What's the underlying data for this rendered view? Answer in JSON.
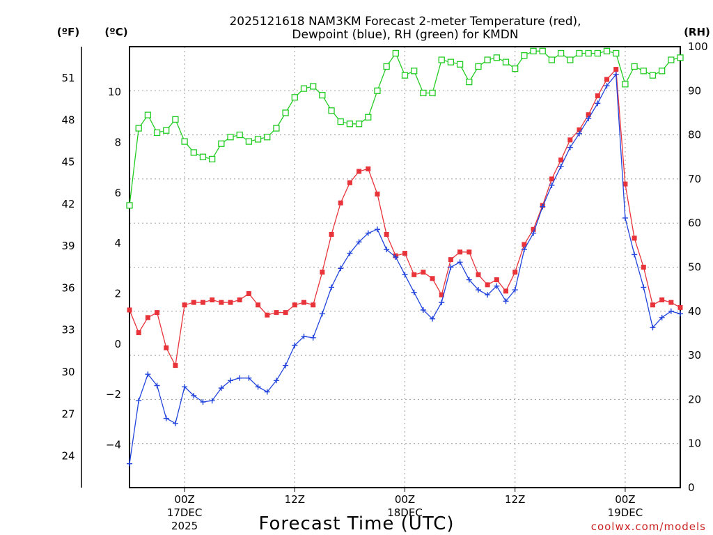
{
  "colors": {
    "temperature": "#e8333a",
    "dewpoint": "#2244dd",
    "rh": "#22cc22",
    "credit": "#cc2222"
  },
  "chart_data": {
    "type": "line",
    "title_line1": "2025121618 NAM3KM Forecast 2-meter Temperature (red),",
    "title_line2": "Dewpoint (blue), RH (green) for KMDN",
    "xlabel": "Forecast Time (UTC)",
    "credit": "coolwx.com/models",
    "axis_units": {
      "f": "(ºF)",
      "c": "(ºC)",
      "rh": "(RH)"
    },
    "x_unit": "forecast hour since 2025-12-16 18Z",
    "xlim": [
      0,
      60
    ],
    "x_ticks": [
      {
        "x": 6,
        "label": "00Z",
        "sub1": "17DEC",
        "sub2": "2025"
      },
      {
        "x": 18,
        "label": "12Z",
        "sub1": "",
        "sub2": ""
      },
      {
        "x": 30,
        "label": "00Z",
        "sub1": "18DEC",
        "sub2": ""
      },
      {
        "x": 42,
        "label": "12Z",
        "sub1": "",
        "sub2": ""
      },
      {
        "x": 54,
        "label": "00Z",
        "sub1": "19DEC",
        "sub2": ""
      }
    ],
    "ylim_c": [
      -5.7,
      11.8
    ],
    "yticks_c": [
      -4,
      -2,
      0,
      2,
      4,
      6,
      8,
      10
    ],
    "yticks_f": [
      24,
      27,
      30,
      33,
      36,
      39,
      42,
      45,
      48,
      51
    ],
    "ylim_rh": [
      0,
      100
    ],
    "yticks_rh": [
      0,
      10,
      20,
      30,
      40,
      50,
      60,
      70,
      80,
      90,
      100
    ],
    "x": [
      0,
      1,
      2,
      3,
      4,
      5,
      6,
      7,
      8,
      9,
      10,
      11,
      12,
      13,
      14,
      15,
      16,
      17,
      18,
      19,
      20,
      21,
      22,
      23,
      24,
      25,
      26,
      27,
      28,
      29,
      30,
      31,
      32,
      33,
      34,
      35,
      36,
      37,
      38,
      39,
      40,
      41,
      42,
      43,
      44,
      45,
      46,
      47,
      48,
      49,
      50,
      51,
      52,
      53,
      54,
      55,
      56,
      57,
      58,
      59,
      60
    ],
    "series": [
      {
        "name": "2-meter Temperature (°C)",
        "axis": "c",
        "values": [
          1.35,
          0.45,
          1.05,
          1.25,
          -0.15,
          -0.85,
          1.55,
          1.65,
          1.65,
          1.75,
          1.65,
          1.65,
          1.75,
          2.0,
          1.55,
          1.15,
          1.25,
          1.25,
          1.55,
          1.65,
          1.55,
          2.85,
          4.35,
          5.6,
          6.4,
          6.85,
          6.95,
          5.95,
          4.35,
          3.5,
          3.6,
          2.75,
          2.85,
          2.6,
          1.95,
          3.35,
          3.65,
          3.65,
          2.75,
          2.35,
          2.55,
          2.1,
          2.85,
          3.95,
          4.55,
          5.5,
          6.55,
          7.3,
          8.1,
          8.5,
          9.1,
          9.85,
          10.5,
          10.9,
          6.35,
          4.2,
          3.05,
          1.55,
          1.75,
          1.65,
          1.45
        ]
      },
      {
        "name": "Dewpoint (°C)",
        "axis": "c",
        "values": [
          -4.75,
          -2.25,
          -1.2,
          -1.65,
          -2.95,
          -3.15,
          -1.7,
          -2.05,
          -2.3,
          -2.25,
          -1.75,
          -1.45,
          -1.35,
          -1.35,
          -1.7,
          -1.9,
          -1.45,
          -0.85,
          -0.05,
          0.3,
          0.25,
          1.2,
          2.25,
          3.0,
          3.6,
          4.05,
          4.4,
          4.55,
          3.75,
          3.45,
          2.75,
          2.05,
          1.35,
          1.0,
          1.65,
          3.05,
          3.25,
          2.55,
          2.15,
          1.95,
          2.3,
          1.7,
          2.15,
          3.75,
          4.4,
          5.45,
          6.3,
          7.05,
          7.8,
          8.35,
          8.95,
          9.55,
          10.25,
          10.7,
          5.0,
          3.55,
          2.25,
          0.65,
          1.05,
          1.3,
          1.2
        ]
      },
      {
        "name": "RH (%)",
        "axis": "rh",
        "values": [
          64,
          81.5,
          84.5,
          80.5,
          81,
          83.5,
          78.5,
          76,
          75,
          74.5,
          78,
          79.5,
          80,
          78.5,
          79,
          79.5,
          81.5,
          85,
          88.5,
          90.5,
          91,
          89,
          85.5,
          83,
          82.5,
          82.5,
          84,
          90,
          95.5,
          98.5,
          93.5,
          94.5,
          89.5,
          89.5,
          97,
          96.5,
          96,
          92,
          95.5,
          97,
          97.5,
          96.5,
          95,
          98,
          99,
          99,
          97,
          98.5,
          97,
          98.5,
          98.5,
          98.5,
          99,
          98.5,
          91.5,
          95.5,
          94.5,
          93.5,
          94.5,
          97,
          97.5
        ]
      }
    ]
  }
}
